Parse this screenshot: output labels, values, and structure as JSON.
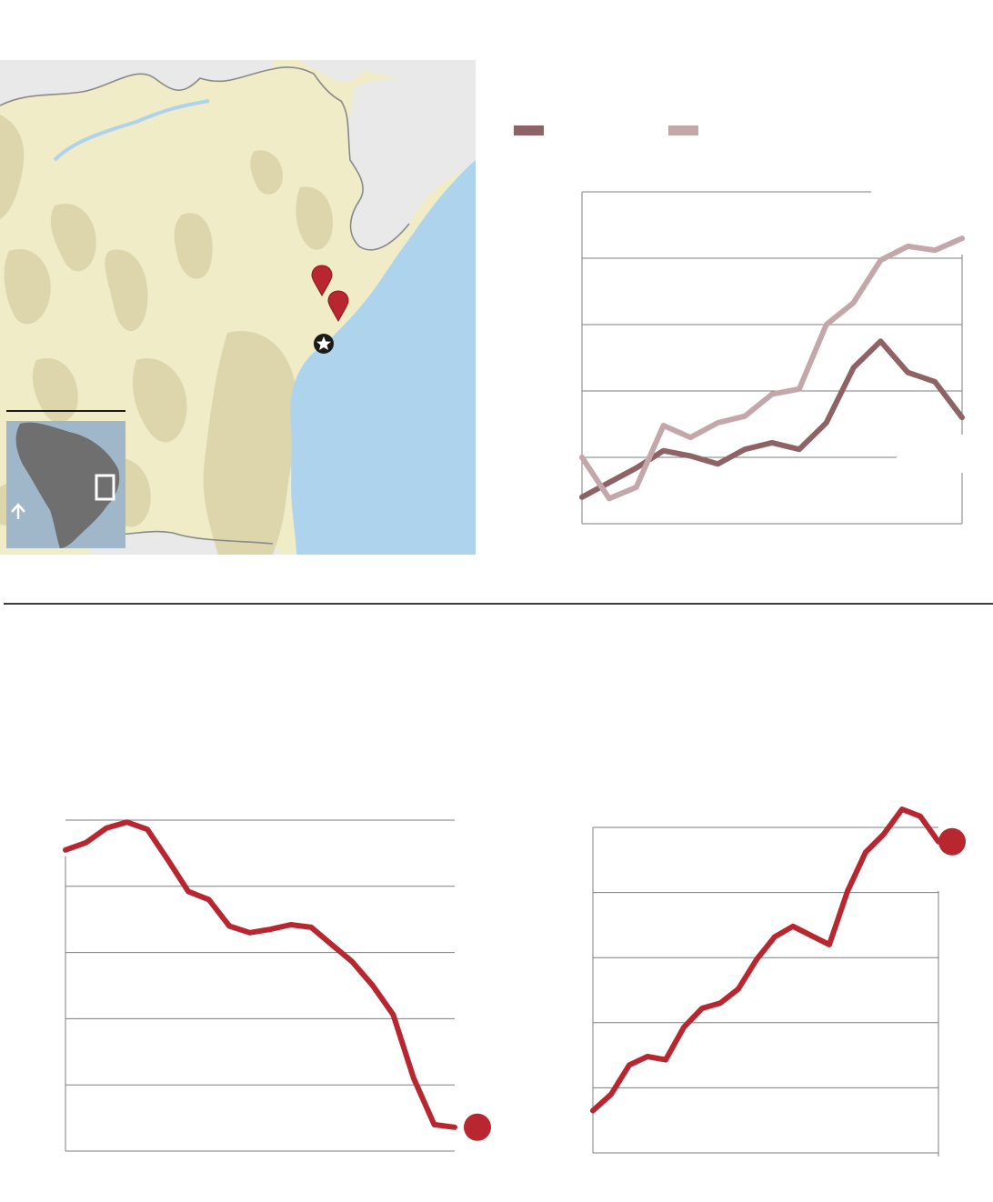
{
  "colors": {
    "land": "#f1ecc8",
    "relief": "#ddd6ac",
    "neighbor_land": "#e9e9e9",
    "water": "#aed3ec",
    "border": "#8a8a8a",
    "marker": "#b8262f",
    "inset_land": "#6f6f6f",
    "inset_water": "#9fb7c9",
    "series_dark": "#8f6366",
    "series_light": "#c4a7aa",
    "series_red": "#b8262f",
    "grid": "#7d7d7d"
  },
  "map": {
    "markers": [
      "location-marker",
      "location-marker",
      "capital-star"
    ],
    "inset": "south-america-locator",
    "north_arrow": "arrow-up-icon"
  },
  "chart_data": [
    {
      "id": "top-comparison",
      "type": "line",
      "legend_position": "top-left",
      "grid": true,
      "x": [
        1,
        2,
        3,
        4,
        5,
        6,
        7,
        8,
        9,
        10,
        11,
        12,
        13,
        14,
        15
      ],
      "ylim": [
        0,
        5
      ],
      "series": [
        {
          "color": "#8f6366",
          "values": [
            0.4,
            0.62,
            0.84,
            1.1,
            1.02,
            0.9,
            1.12,
            1.22,
            1.12,
            1.52,
            2.35,
            2.75,
            2.28,
            2.14,
            1.6
          ]
        },
        {
          "color": "#c4a7aa",
          "values": [
            1.0,
            0.38,
            0.55,
            1.48,
            1.3,
            1.52,
            1.62,
            1.95,
            2.03,
            3.0,
            3.33,
            3.97,
            4.18,
            4.12,
            4.3
          ]
        }
      ]
    },
    {
      "id": "bottom-left-decline",
      "type": "line",
      "grid": true,
      "end_marker": true,
      "ylim": [
        0,
        5
      ],
      "x": [
        1,
        2,
        3,
        4,
        5,
        6,
        7,
        8,
        9,
        10,
        11,
        12,
        13,
        14,
        15,
        16,
        17,
        18,
        19,
        20
      ],
      "series": [
        {
          "color": "#b8262f",
          "values": [
            4.55,
            4.66,
            4.88,
            4.97,
            4.86,
            4.4,
            3.92,
            3.8,
            3.4,
            3.3,
            3.35,
            3.42,
            3.38,
            3.12,
            2.86,
            2.5,
            2.06,
            1.1,
            0.4,
            0.36
          ]
        }
      ]
    },
    {
      "id": "bottom-right-rise",
      "type": "line",
      "grid": true,
      "end_marker": true,
      "ylim": [
        0,
        5
      ],
      "x": [
        1,
        2,
        3,
        4,
        5,
        6,
        7,
        8,
        9,
        10,
        11,
        12,
        13,
        14,
        15,
        16,
        17,
        18,
        19,
        20
      ],
      "series": [
        {
          "color": "#b8262f",
          "values": [
            0.65,
            0.9,
            1.35,
            1.48,
            1.43,
            1.93,
            2.22,
            2.3,
            2.52,
            2.97,
            3.32,
            3.48,
            3.34,
            3.2,
            4.02,
            4.62,
            4.9,
            5.28,
            5.17,
            4.78
          ]
        }
      ]
    }
  ]
}
